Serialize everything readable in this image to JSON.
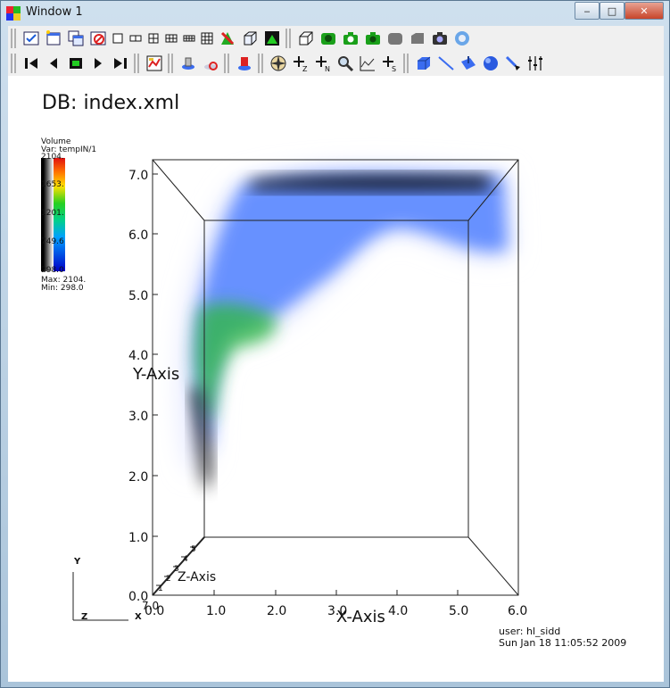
{
  "window": {
    "title": "Window 1",
    "minimize": "‒",
    "maximize": "□",
    "close": "✕"
  },
  "viewport": {
    "db_title": "DB: index.xml",
    "legend": {
      "plot_type": "Volume",
      "variable": "Var: tempIN/1",
      "ticks": [
        "2104.",
        "1653.",
        "1201.",
        "749.6",
        "298.0"
      ],
      "max": "Max:  2104.",
      "min": "Min:  298.0"
    },
    "y_axis": {
      "label": "Y-Axis",
      "ticks": [
        "0.0",
        "1.0",
        "2.0",
        "3.0",
        "4.0",
        "5.0",
        "6.0",
        "7.0"
      ]
    },
    "x_axis": {
      "label": "X-Axis",
      "ticks": [
        "0.0",
        "1.0",
        "2.0",
        "3.0",
        "4.0",
        "5.0",
        "6.0"
      ]
    },
    "z_axis": {
      "label": "Z-Axis",
      "ticks": [
        "7.0",
        "1",
        "2",
        "3",
        "4",
        "5"
      ]
    },
    "triad": {
      "y": "Y",
      "z": "Z",
      "x": "X"
    },
    "user": "user: hl_sidd",
    "date": "Sun Jan 18 11:05:52 2009"
  },
  "colors": {
    "accent": "#3a6cf0",
    "volume_green": "#2dbb3a",
    "volume_blue": "#4a7cff"
  }
}
